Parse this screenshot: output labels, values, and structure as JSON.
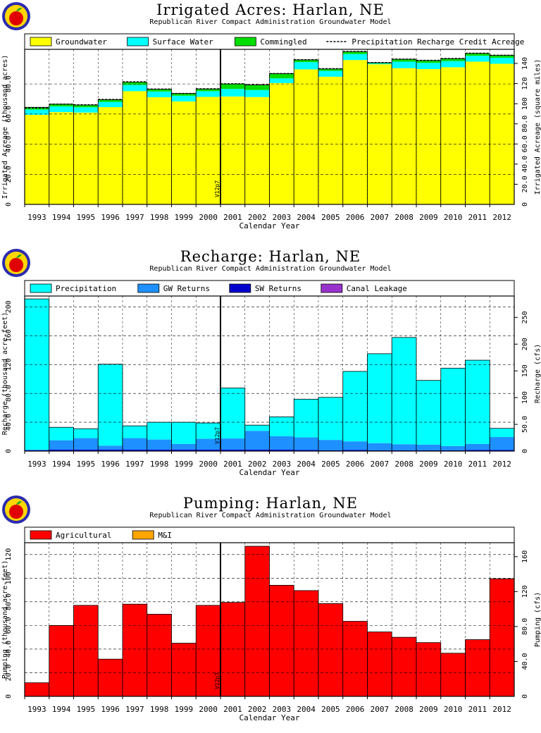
{
  "chart_data": [
    {
      "type": "bar",
      "title": "Irrigated Acres: Harlan, NE",
      "subtitle": "Republican River Compact Administration Groundwater Model",
      "xlabel": "Calendar Year",
      "ylabel": "Irrigated Acreage (thousand acres)",
      "ylabel_right": "Irrigated Acreage (square miles)",
      "marker_label": "V12p7",
      "marker_after": "2000",
      "categories": [
        "1993",
        "1994",
        "1995",
        "1996",
        "1997",
        "1998",
        "1999",
        "2000",
        "2001",
        "2002",
        "2003",
        "2004",
        "2005",
        "2006",
        "2007",
        "2008",
        "2009",
        "2010",
        "2011",
        "2012"
      ],
      "ylim": [
        0,
        103
      ],
      "y_ticks": [
        "20.0",
        "40.0",
        "60.0",
        "80.0"
      ],
      "y2_ticks": [
        "20.0",
        "40.0",
        "60.0",
        "80.0",
        "100",
        "120",
        "140"
      ],
      "legend": [
        "Groundwater",
        "Surface Water",
        "Commingled",
        "Precipitation Recharge Credit Acreage"
      ],
      "legend_colors": [
        "#ffff00",
        "#00ffff",
        "#00dd00",
        "#000000"
      ],
      "series": [
        {
          "name": "Groundwater",
          "color": "#ffff00",
          "values": [
            59.5,
            61.3,
            61.0,
            64.6,
            75.2,
            71.2,
            68.4,
            71.4,
            71.7,
            71.3,
            80.6,
            89.7,
            84.8,
            95.9,
            93.1,
            90.5,
            89.9,
            91.1,
            94.8,
            93.4
          ]
        },
        {
          "name": "Surface Water",
          "color": "#00ffff",
          "values": [
            3.5,
            3.8,
            3.5,
            3.5,
            4.2,
            3.8,
            3.8,
            3.8,
            5.0,
            4.7,
            3.1,
            4.8,
            3.9,
            4.0,
            0.5,
            4.3,
            4.1,
            4.1,
            3.9,
            4.0
          ]
        },
        {
          "name": "Commingled",
          "color": "#00dd00",
          "values": [
            1.5,
            1.5,
            1.5,
            1.5,
            1.8,
            1.5,
            1.5,
            1.5,
            3.3,
            3.4,
            3.2,
            1.5,
            1.3,
            1.6,
            0.5,
            1.6,
            1.6,
            1.6,
            1.6,
            1.6
          ]
        },
        {
          "name": "Precipitation Recharge Credit Acreage",
          "values": [
            64.0,
            66.6,
            66.2,
            69.7,
            81.4,
            76.6,
            73.7,
            76.8,
            80.1,
            79.5,
            86.9,
            96.1,
            90.1,
            101.6,
            94.2,
            96.5,
            95.7,
            96.9,
            100.4,
            99.1
          ]
        }
      ]
    },
    {
      "type": "bar",
      "title": "Recharge: Harlan, NE",
      "subtitle": "Republican River Compact Administration Groundwater Model",
      "xlabel": "Calendar Year",
      "ylabel": "Recharge (thousand acre-feet)",
      "ylabel_right": "Recharge (cfs)",
      "marker_label": "V12p7",
      "marker_after": "2000",
      "categories": [
        "1993",
        "1994",
        "1995",
        "1996",
        "1997",
        "1998",
        "1999",
        "2000",
        "2001",
        "2002",
        "2003",
        "2004",
        "2005",
        "2006",
        "2007",
        "2008",
        "2009",
        "2010",
        "2011",
        "2012"
      ],
      "ylim": [
        0,
        215
      ],
      "y_ticks": [
        "40.0",
        "80.0",
        "120",
        "160",
        "200"
      ],
      "y2_ticks": [
        "50.0",
        "100",
        "150",
        "200",
        "250"
      ],
      "legend": [
        "Precipitation",
        "GW Returns",
        "SW Returns",
        "Canal Leakage"
      ],
      "legend_colors": [
        "#00ffff",
        "#1e90ff",
        "#0000cd",
        "#9932cc"
      ],
      "series": [
        {
          "name": "Canal Leakage",
          "color": "#9932cc",
          "values": [
            0,
            0,
            0,
            0,
            0,
            0,
            0,
            0,
            0,
            0,
            0,
            0,
            0,
            0,
            0,
            0,
            0,
            0,
            0,
            0
          ]
        },
        {
          "name": "SW Returns",
          "color": "#0000cd",
          "values": [
            1.0,
            2.0,
            2.0,
            2.0,
            2.0,
            2.0,
            2.0,
            2.0,
            2.0,
            2.0,
            2.0,
            1.5,
            1.0,
            1.5,
            1.0,
            1.0,
            1.0,
            1.0,
            1.5,
            1.5
          ]
        },
        {
          "name": "GW Returns",
          "color": "#1e90ff",
          "values": [
            1.0,
            13.0,
            16.0,
            5.5,
            16.0,
            14.0,
            8.0,
            15.0,
            15.5,
            26.0,
            18.5,
            17.5,
            14.5,
            12.0,
            10.0,
            8.5,
            8.0,
            6.0,
            8.5,
            18.0
          ]
        },
        {
          "name": "Precipitation",
          "color": "#00ffff",
          "values": [
            209,
            18,
            13,
            113,
            17,
            24,
            30,
            22,
            70,
            8,
            27,
            53,
            59,
            97,
            124,
            148,
            89,
            108,
            116,
            12
          ]
        }
      ]
    },
    {
      "type": "bar",
      "title": "Pumping: Harlan, NE",
      "subtitle": "Republican River Compact Administration Groundwater Model",
      "xlabel": "Calendar Year",
      "ylabel": "Pumping (thousand acre-feet)",
      "ylabel_right": "Pumping (cfs)",
      "marker_label": "V12p7",
      "marker_after": "2000",
      "categories": [
        "1993",
        "1994",
        "1995",
        "1996",
        "1997",
        "1998",
        "1999",
        "2000",
        "2001",
        "2002",
        "2003",
        "2004",
        "2005",
        "2006",
        "2007",
        "2008",
        "2009",
        "2010",
        "2011",
        "2012"
      ],
      "ylim": [
        0,
        130
      ],
      "y_ticks": [
        "20.0",
        "40.0",
        "60.0",
        "80.0",
        "100",
        "120"
      ],
      "y2_ticks": [
        "40.0",
        "80.0",
        "120",
        "160"
      ],
      "legend": [
        "Agricultural",
        "M&I"
      ],
      "legend_colors": [
        "#ff0000",
        "#ffa500"
      ],
      "series": [
        {
          "name": "Agricultural",
          "color": "#ff0000",
          "values": [
            11.5,
            60,
            77,
            31.5,
            78,
            69.5,
            45,
            77,
            79.5,
            127,
            94,
            89.5,
            78.5,
            63.5,
            54.5,
            50,
            45.5,
            36.5,
            48,
            99.5
          ]
        },
        {
          "name": "M&I",
          "color": "#ffa500",
          "values": [
            0,
            0,
            0,
            0,
            0,
            0,
            0,
            0,
            0,
            0,
            0,
            0,
            0,
            0,
            0,
            0,
            0,
            0,
            0,
            0
          ]
        }
      ]
    }
  ]
}
